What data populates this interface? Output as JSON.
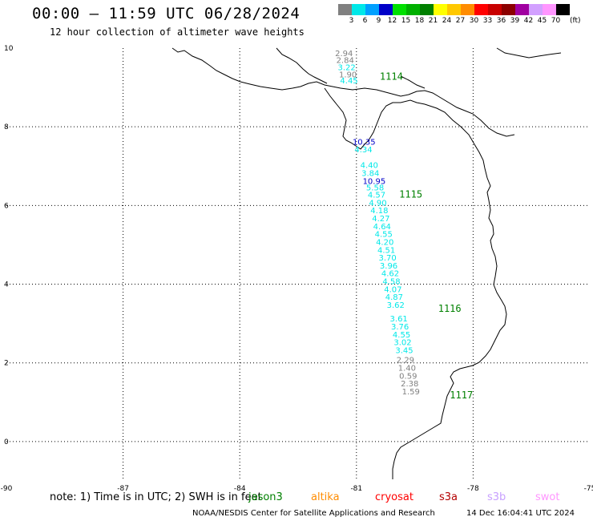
{
  "header": {
    "title": "00:00 – 11:59 UTC 06/28/2024",
    "subtitle": "12 hour collection of altimeter wave heights"
  },
  "legend": {
    "unit": "(ft)",
    "bins": [
      {
        "label": "3",
        "color": "#808080"
      },
      {
        "label": "6",
        "color": "#00e8e8"
      },
      {
        "label": "9",
        "color": "#00a0ff"
      },
      {
        "label": "12",
        "color": "#0000c8"
      },
      {
        "label": "15",
        "color": "#00e000"
      },
      {
        "label": "18",
        "color": "#00b000"
      },
      {
        "label": "21",
        "color": "#008000"
      },
      {
        "label": "24",
        "color": "#ffff00"
      },
      {
        "label": "27",
        "color": "#ffc800"
      },
      {
        "label": "30",
        "color": "#ff8c00"
      },
      {
        "label": "33",
        "color": "#ff0000"
      },
      {
        "label": "36",
        "color": "#c80000"
      },
      {
        "label": "39",
        "color": "#8c0000"
      },
      {
        "label": "42",
        "color": "#a000a0"
      },
      {
        "label": "45",
        "color": "#d2a0ff"
      },
      {
        "label": "70",
        "color": "#ff96ff"
      },
      {
        "label": "",
        "color": "#000000"
      }
    ]
  },
  "axes": {
    "lon_ticks": [
      "-90",
      "-87",
      "-84",
      "-81",
      "-78",
      "-75"
    ],
    "lat_ticks": [
      "10",
      "8",
      "6",
      "4",
      "2",
      "0"
    ],
    "lon_range": [
      -90,
      -75
    ],
    "lat_range": [
      -1,
      10
    ]
  },
  "chart_data": {
    "type": "scatter",
    "xlabel": "",
    "ylabel": "",
    "time_labels": [
      {
        "text": "1114",
        "lon": -80.4,
        "lat": 9.2
      },
      {
        "text": "1115",
        "lon": -79.9,
        "lat": 6.2
      },
      {
        "text": "1116",
        "lon": -78.9,
        "lat": 3.3
      },
      {
        "text": "1117",
        "lon": -78.6,
        "lat": 1.1
      }
    ],
    "points": [
      {
        "text": "2.94",
        "lon": -81.55,
        "lat": 9.8,
        "color": "#808080"
      },
      {
        "text": "2.84",
        "lon": -81.52,
        "lat": 9.62,
        "color": "#808080"
      },
      {
        "text": "3.22",
        "lon": -81.48,
        "lat": 9.44,
        "color": "#00e8e8"
      },
      {
        "text": "1.90",
        "lon": -81.45,
        "lat": 9.26,
        "color": "#808080"
      },
      {
        "text": "4.45",
        "lon": -81.42,
        "lat": 9.1,
        "color": "#00e8e8"
      },
      {
        "text": "10.35",
        "lon": -81.1,
        "lat": 7.55,
        "color": "#0000c8"
      },
      {
        "text": "4.34",
        "lon": -81.05,
        "lat": 7.35,
        "color": "#00e8e8"
      },
      {
        "text": "4.40",
        "lon": -80.9,
        "lat": 6.95,
        "color": "#00e8e8"
      },
      {
        "text": "3.84",
        "lon": -80.87,
        "lat": 6.75,
        "color": "#00e8e8"
      },
      {
        "text": "10.95",
        "lon": -80.84,
        "lat": 6.55,
        "color": "#0000c8"
      },
      {
        "text": "5.58",
        "lon": -80.75,
        "lat": 6.38,
        "color": "#00e8e8"
      },
      {
        "text": "4.57",
        "lon": -80.71,
        "lat": 6.2,
        "color": "#00e8e8"
      },
      {
        "text": "4.90",
        "lon": -80.68,
        "lat": 6.0,
        "color": "#00e8e8"
      },
      {
        "text": "4.18",
        "lon": -80.64,
        "lat": 5.8,
        "color": "#00e8e8"
      },
      {
        "text": "4.27",
        "lon": -80.6,
        "lat": 5.6,
        "color": "#00e8e8"
      },
      {
        "text": "4.64",
        "lon": -80.57,
        "lat": 5.4,
        "color": "#00e8e8"
      },
      {
        "text": "4.55",
        "lon": -80.53,
        "lat": 5.2,
        "color": "#00e8e8"
      },
      {
        "text": "4.20",
        "lon": -80.5,
        "lat": 5.0,
        "color": "#00e8e8"
      },
      {
        "text": "4.51",
        "lon": -80.46,
        "lat": 4.8,
        "color": "#00e8e8"
      },
      {
        "text": "3.70",
        "lon": -80.43,
        "lat": 4.6,
        "color": "#00e8e8"
      },
      {
        "text": "3.96",
        "lon": -80.4,
        "lat": 4.4,
        "color": "#00e8e8"
      },
      {
        "text": "4.62",
        "lon": -80.36,
        "lat": 4.2,
        "color": "#00e8e8"
      },
      {
        "text": "4.58",
        "lon": -80.33,
        "lat": 4.0,
        "color": "#00e8e8"
      },
      {
        "text": "4.07",
        "lon": -80.29,
        "lat": 3.8,
        "color": "#00e8e8"
      },
      {
        "text": "4.87",
        "lon": -80.26,
        "lat": 3.6,
        "color": "#00e8e8"
      },
      {
        "text": "3.62",
        "lon": -80.22,
        "lat": 3.4,
        "color": "#00e8e8"
      },
      {
        "text": "3.61",
        "lon": -80.14,
        "lat": 3.05,
        "color": "#00e8e8"
      },
      {
        "text": "3.76",
        "lon": -80.11,
        "lat": 2.85,
        "color": "#00e8e8"
      },
      {
        "text": "4.55",
        "lon": -80.07,
        "lat": 2.65,
        "color": "#00e8e8"
      },
      {
        "text": "3.02",
        "lon": -80.04,
        "lat": 2.45,
        "color": "#00e8e8"
      },
      {
        "text": "3.45",
        "lon": -80.0,
        "lat": 2.25,
        "color": "#00e8e8"
      },
      {
        "text": "2.29",
        "lon": -79.97,
        "lat": 2.0,
        "color": "#808080"
      },
      {
        "text": "1.40",
        "lon": -79.93,
        "lat": 1.8,
        "color": "#808080"
      },
      {
        "text": "0.59",
        "lon": -79.9,
        "lat": 1.6,
        "color": "#808080"
      },
      {
        "text": "2.38",
        "lon": -79.86,
        "lat": 1.4,
        "color": "#808080"
      },
      {
        "text": "1.59",
        "lon": -79.83,
        "lat": 1.2,
        "color": "#808080"
      }
    ]
  },
  "footer": {
    "note": "note:  1) Time is in UTC; 2) SWH is in feet",
    "satellites": [
      {
        "name": "jason3",
        "color": "#008000"
      },
      {
        "name": "altika",
        "color": "#ff8c00"
      },
      {
        "name": "cryosat",
        "color": "#ff0000"
      },
      {
        "name": "s3a",
        "color": "#b40000"
      },
      {
        "name": "s3b",
        "color": "#c8a0ff"
      },
      {
        "name": "swot",
        "color": "#ff96ff"
      }
    ],
    "credit": "NOAA/NESDIS Center for Satellite Applications and Research",
    "timestamp": "14 Dec 16:04:41 UTC 2024"
  }
}
